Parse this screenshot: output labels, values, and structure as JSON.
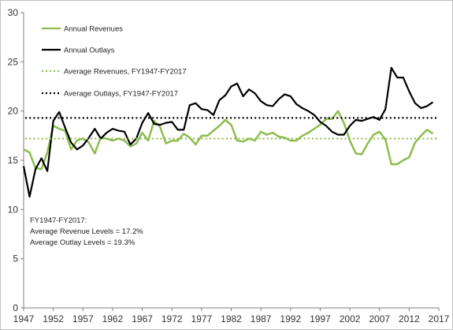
{
  "chart_data": {
    "type": "line",
    "title": "",
    "xlabel": "",
    "ylabel": "",
    "xlim": [
      1947,
      2017
    ],
    "ylim": [
      0,
      30
    ],
    "x_ticks": [
      1947,
      1952,
      1957,
      1962,
      1967,
      1972,
      1977,
      1982,
      1987,
      1992,
      1997,
      2002,
      2007,
      2012,
      2017
    ],
    "y_ticks": [
      0,
      5,
      10,
      15,
      20,
      25,
      30
    ],
    "grid": false,
    "legend_position": "top-left",
    "x": [
      1947,
      1948,
      1949,
      1950,
      1951,
      1952,
      1953,
      1954,
      1955,
      1956,
      1957,
      1958,
      1959,
      1960,
      1961,
      1962,
      1963,
      1964,
      1965,
      1966,
      1967,
      1968,
      1969,
      1970,
      1971,
      1972,
      1973,
      1974,
      1975,
      1976,
      1977,
      1978,
      1979,
      1980,
      1981,
      1982,
      1983,
      1984,
      1985,
      1986,
      1987,
      1988,
      1989,
      1990,
      1991,
      1992,
      1993,
      1994,
      1995,
      1996,
      1997,
      1998,
      1999,
      2000,
      2001,
      2002,
      2003,
      2004,
      2005,
      2006,
      2007,
      2008,
      2009,
      2010,
      2011,
      2012,
      2013,
      2014,
      2015,
      2016
    ],
    "series": [
      {
        "name": "Annual Revenues",
        "color": "#8fbc50",
        "style": "solid",
        "values": [
          16.1,
          15.8,
          14.2,
          14.1,
          15.8,
          18.5,
          18.2,
          18.0,
          16.1,
          17.0,
          17.2,
          16.8,
          15.7,
          17.3,
          17.2,
          17.0,
          17.2,
          17.0,
          16.4,
          16.7,
          17.8,
          17.0,
          19.0,
          18.4,
          16.7,
          17.0,
          17.0,
          17.7,
          17.3,
          16.6,
          17.5,
          17.5,
          18.0,
          18.5,
          19.1,
          18.6,
          17.0,
          16.9,
          17.2,
          17.0,
          17.9,
          17.6,
          17.8,
          17.4,
          17.3,
          17.0,
          17.0,
          17.5,
          17.8,
          18.2,
          18.6,
          19.2,
          19.2,
          20.0,
          18.8,
          17.0,
          15.7,
          15.6,
          16.7,
          17.6,
          17.9,
          17.1,
          14.6,
          14.6,
          15.0,
          15.3,
          16.8,
          17.5,
          18.1,
          17.7
        ]
      },
      {
        "name": "Annual Outlays",
        "color": "#000000",
        "style": "solid",
        "values": [
          14.4,
          11.3,
          14.1,
          15.2,
          13.9,
          19.0,
          19.9,
          18.3,
          16.8,
          16.1,
          16.5,
          17.3,
          18.2,
          17.2,
          17.8,
          18.2,
          18.0,
          17.9,
          16.6,
          17.2,
          18.8,
          19.8,
          18.7,
          18.6,
          18.8,
          18.9,
          18.1,
          18.1,
          20.6,
          20.8,
          20.2,
          20.1,
          19.6,
          21.1,
          21.6,
          22.5,
          22.8,
          21.5,
          22.2,
          21.8,
          21.0,
          20.6,
          20.5,
          21.2,
          21.7,
          21.5,
          20.7,
          20.3,
          20.0,
          19.6,
          18.9,
          18.5,
          17.9,
          17.6,
          17.6,
          18.5,
          19.1,
          19.0,
          19.2,
          19.4,
          19.1,
          20.2,
          24.4,
          23.4,
          23.4,
          22.0,
          20.8,
          20.3,
          20.5,
          20.9
        ]
      },
      {
        "name": "Average Revenues, FY1947-FY2017",
        "color": "#8fbc50",
        "style": "dotted",
        "constant": 17.2
      },
      {
        "name": "Average Outlays, FY1947-FY2017",
        "color": "#000000",
        "style": "dotted",
        "constant": 19.3
      }
    ],
    "annotation": {
      "lines": [
        "FY1947-FY2017:",
        "Average Revenue Levels = 17.2%",
        "Average Outlay Levels = 19.3%"
      ]
    }
  }
}
